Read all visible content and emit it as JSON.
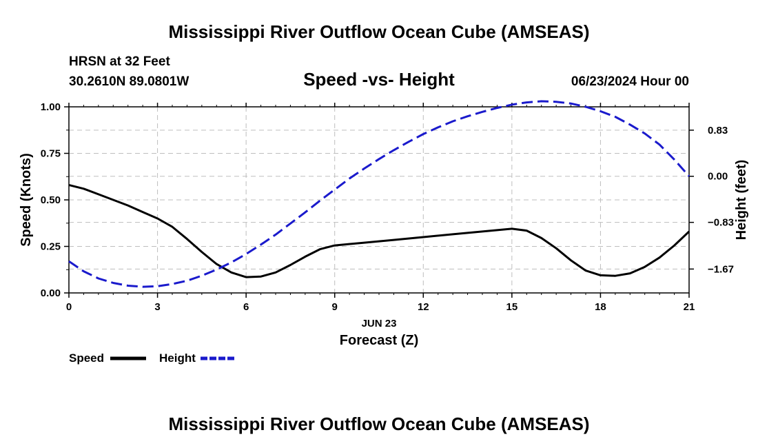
{
  "header": {
    "title": "Mississippi River Outflow Ocean Cube (AMSEAS)",
    "station": "HRSN at 32 Feet",
    "coords": "30.2610N  89.0801W",
    "chart_title": "Speed -vs- Height",
    "date": "06/23/2024 Hour 00"
  },
  "footer": {
    "title": "Mississippi River Outflow Ocean Cube (AMSEAS)"
  },
  "chart_data": {
    "type": "line",
    "title": "Speed -vs- Height",
    "xlabel": "Forecast (Z)",
    "xsub": "JUN 23",
    "ylabel": "Speed (Knots)",
    "y2label": "Height (feet)",
    "xlim": [
      0,
      21
    ],
    "ylim": [
      0,
      1
    ],
    "y2lim": [
      -2.1,
      1.25
    ],
    "xticks": [
      0,
      3,
      6,
      9,
      12,
      15,
      18,
      21
    ],
    "xtick_labels": [
      "0",
      "3",
      "6",
      "9",
      "12",
      "15",
      "18",
      "21"
    ],
    "yticks": [
      0,
      0.25,
      0.5,
      0.75,
      1.0
    ],
    "ytick_labels": [
      "0.00",
      "0.25",
      "0.50",
      "0.75",
      "1.00"
    ],
    "y2ticks": [
      0.83,
      0,
      -0.83,
      -1.67
    ],
    "y2tick_labels": [
      "0.83",
      "0.00",
      "−0.83",
      "−1.67"
    ],
    "series": [
      {
        "name": "Speed",
        "axis": "left",
        "color": "#000000",
        "x": [
          0,
          0.5,
          1,
          1.5,
          2,
          2.5,
          3,
          3.5,
          4,
          4.5,
          5,
          5.5,
          6,
          6.5,
          7,
          7.5,
          8,
          8.5,
          9,
          10,
          11,
          12,
          13,
          14,
          15,
          15.5,
          16,
          16.5,
          17,
          17.5,
          18,
          18.5,
          19,
          19.5,
          20,
          20.5,
          21
        ],
        "values": [
          0.58,
          0.56,
          0.53,
          0.5,
          0.47,
          0.435,
          0.4,
          0.355,
          0.29,
          0.22,
          0.155,
          0.11,
          0.085,
          0.088,
          0.11,
          0.15,
          0.195,
          0.235,
          0.255,
          0.27,
          0.285,
          0.3,
          0.315,
          0.33,
          0.345,
          0.335,
          0.295,
          0.24,
          0.175,
          0.12,
          0.095,
          0.092,
          0.105,
          0.14,
          0.19,
          0.255,
          0.33
        ]
      },
      {
        "name": "Height",
        "axis": "right",
        "color": "#1a1acc",
        "x": [
          0,
          0.5,
          1,
          1.5,
          2,
          2.5,
          3,
          3.5,
          4,
          4.5,
          5,
          5.5,
          6,
          6.5,
          7,
          7.5,
          8,
          8.5,
          9,
          9.5,
          10,
          10.5,
          11,
          11.5,
          12,
          12.5,
          13,
          13.5,
          14,
          14.5,
          15,
          15.5,
          16,
          16.5,
          17,
          17.5,
          18,
          18.5,
          19,
          19.5,
          20,
          20.5,
          21
        ],
        "values": [
          -1.53,
          -1.71,
          -1.84,
          -1.92,
          -1.97,
          -1.99,
          -1.98,
          -1.94,
          -1.88,
          -1.79,
          -1.68,
          -1.55,
          -1.4,
          -1.23,
          -1.05,
          -0.85,
          -0.65,
          -0.44,
          -0.24,
          -0.04,
          0.14,
          0.31,
          0.47,
          0.62,
          0.76,
          0.88,
          0.99,
          1.08,
          1.16,
          1.23,
          1.29,
          1.33,
          1.35,
          1.34,
          1.31,
          1.25,
          1.17,
          1.07,
          0.93,
          0.77,
          0.57,
          0.3,
          0.0
        ]
      }
    ],
    "legend": [
      {
        "label": "Speed",
        "color": "#000000",
        "dashed": false
      },
      {
        "label": "Height",
        "color": "#1a1acc",
        "dashed": true
      }
    ]
  }
}
